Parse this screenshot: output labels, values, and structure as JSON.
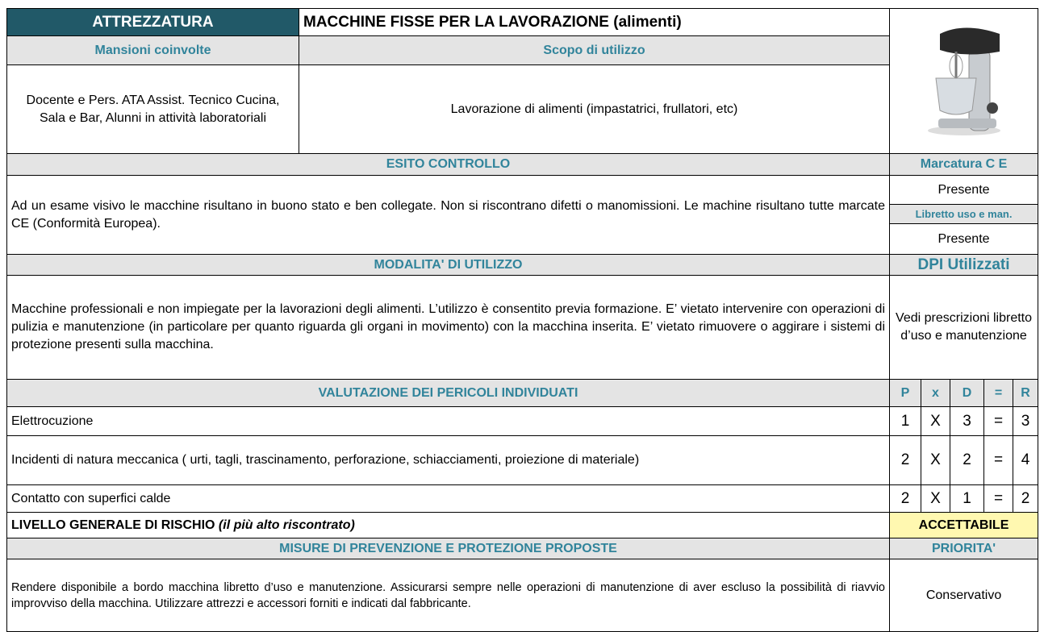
{
  "header": {
    "attrezzatura": "ATTREZZATURA",
    "title": "MACCHINE FISSE PER LA LAVORAZIONE (alimenti)"
  },
  "mansioni": {
    "label": "Mansioni coinvolte",
    "value": "Docente e Pers. ATA Assist. Tecnico Cucina, Sala e Bar, Alunni in attività laboratoriali"
  },
  "scopo": {
    "label": "Scopo di utilizzo",
    "value": "Lavorazione di alimenti (impastatrici, frullatori, etc)"
  },
  "esito": {
    "label": "ESITO CONTROLLO",
    "text": "Ad un esame visivo le macchine risultano in buono stato e ben collegate. Non si riscontrano difetti o manomissioni.  Le machine risultano tutte marcate CE (Conformità Europea)."
  },
  "marcatura": {
    "label": "Marcatura C E",
    "value": "Presente"
  },
  "libretto": {
    "label": "Libretto uso e man.",
    "value": "Presente"
  },
  "modalita": {
    "label": "MODALITA' DI UTILIZZO",
    "text": "Macchine professionali e non impiegate per la lavorazioni degli alimenti. L’utilizzo è consentito previa formazione.  E’ vietato intervenire con operazioni di pulizia e manutenzione (in particolare per quanto riguarda gli organi in movimento) con la macchina inserita. E’ vietato rimuovere o aggirare i sistemi di protezione presenti sulla macchina."
  },
  "dpi": {
    "label": "DPI Utilizzati",
    "value": "Vedi prescrizioni libretto d’uso e manutenzione"
  },
  "valutazione": {
    "label": "VALUTAZIONE DEI PERICOLI INDIVIDUATI",
    "columns": [
      "P",
      "x",
      "D",
      "=",
      "R"
    ],
    "rows": [
      {
        "hazard": "Elettrocuzione",
        "cells": [
          1,
          "X",
          3,
          "=",
          3
        ]
      },
      {
        "hazard": "Incidenti di natura meccanica ( urti, tagli, trascinamento, perforazione, schiacciamenti, proiezione di materiale)",
        "cells": [
          2,
          "X",
          2,
          "=",
          4
        ]
      },
      {
        "hazard": "Contatto con superfici calde",
        "cells": [
          2,
          "X",
          1,
          "=",
          2
        ]
      }
    ]
  },
  "livello": {
    "label": "LIVELLO GENERALE DI RISCHIO",
    "note": "(il più alto riscontrato)",
    "value": "ACCETTABILE"
  },
  "misure": {
    "label": "MISURE DI PREVENZIONE E PROTEZIONE PROPOSTE",
    "text": "Rendere disponibile a bordo macchina libretto d’uso e manutenzione. Assicurarsi sempre nelle operazioni di manutenzione di aver escluso la possibilità di riavvio improvviso della macchina. Utilizzare attrezzi e accessori forniti e indicati dal fabbricante."
  },
  "priorita": {
    "label": "PRIORITA'",
    "value": "Conservativo"
  }
}
